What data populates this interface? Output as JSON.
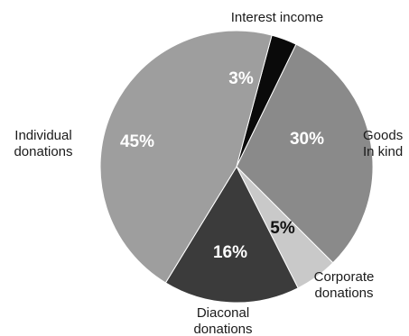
{
  "chart_data": {
    "type": "pie",
    "slices": [
      {
        "label_lines": [
          "Interest income"
        ],
        "value": 3,
        "pct_label": "3%",
        "color": "#0a0a0a",
        "pct_color": "#ffffff"
      },
      {
        "label_lines": [
          "Goods",
          "In kind"
        ],
        "value": 30,
        "pct_label": "30%",
        "color": "#8a8a8a",
        "pct_color": "#ffffff"
      },
      {
        "label_lines": [
          "Corporate",
          "donations"
        ],
        "value": 5,
        "pct_label": "5%",
        "color": "#c9c9c9",
        "pct_color": "#111111"
      },
      {
        "label_lines": [
          "Diaconal",
          "donations"
        ],
        "value": 16,
        "pct_label": "16%",
        "color": "#3b3b3b",
        "pct_color": "#ffffff"
      },
      {
        "label_lines": [
          "Individual",
          "donations"
        ],
        "value": 45,
        "pct_label": "45%",
        "color": "#9e9e9e",
        "pct_color": "#ffffff"
      }
    ]
  }
}
